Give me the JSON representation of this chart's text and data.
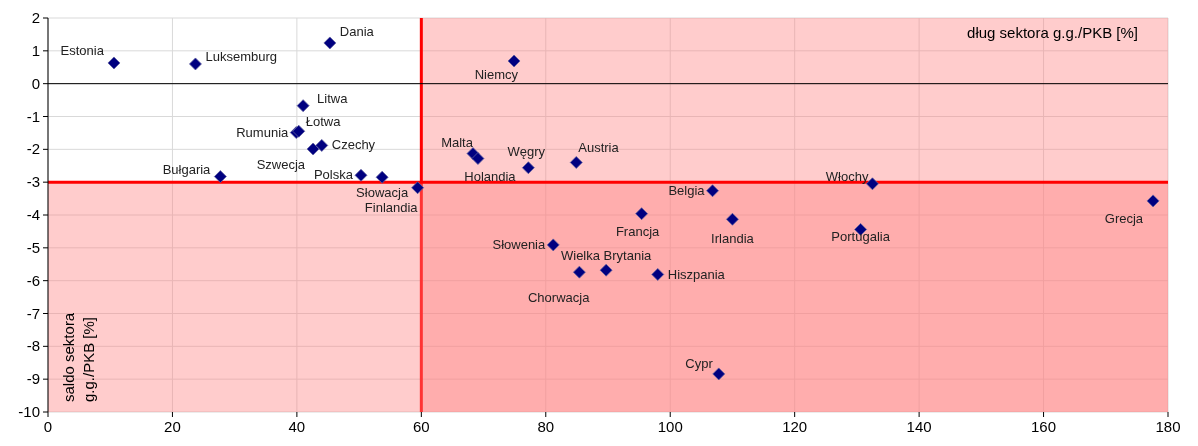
{
  "chart_data": {
    "type": "scatter",
    "xlabel": "dług sektora g.g./PKB [%]",
    "ylabel": "saldo sektora g.g./PKB [%]",
    "xlim": [
      0,
      180
    ],
    "xticks": [
      0,
      20,
      40,
      60,
      80,
      100,
      120,
      140,
      160,
      180
    ],
    "ylim": [
      -10,
      2
    ],
    "yticks": [
      -10,
      -9,
      -8,
      -7,
      -6,
      -5,
      -4,
      -3,
      -2,
      -1,
      0,
      1,
      2
    ],
    "grid": true,
    "marker": "diamond",
    "bands": [
      {
        "axis": "x",
        "from": 60,
        "to": 180,
        "color": "#ff8080"
      },
      {
        "axis": "y",
        "from": -10,
        "to": -3,
        "color": "#ff8080"
      }
    ],
    "ref_lines": [
      {
        "axis": "y",
        "value": 0,
        "color": "#000000"
      }
    ],
    "series": [
      {
        "name": "Estonia",
        "color": "#000080",
        "x": [
          10.6
        ],
        "values": [
          0.63
        ]
      },
      {
        "name": "Luksemburg",
        "color": "#000080",
        "x": [
          23.7
        ],
        "values": [
          0.6
        ]
      },
      {
        "name": "Dania",
        "color": "#000080",
        "x": [
          45.3
        ],
        "values": [
          1.24
        ]
      },
      {
        "name": "Niemcy",
        "color": "#000080",
        "x": [
          74.9
        ],
        "values": [
          0.69
        ]
      },
      {
        "name": "Litwa",
        "color": "#000080",
        "x": [
          41.0
        ],
        "values": [
          -0.67
        ]
      },
      {
        "name": "Rumunia",
        "color": "#000080",
        "x": [
          39.9
        ],
        "values": [
          -1.49
        ]
      },
      {
        "name": "Łotwa",
        "color": "#000080",
        "x": [
          40.3
        ],
        "values": [
          -1.45
        ]
      },
      {
        "name": "Szwecja",
        "color": "#000080",
        "x": [
          42.6
        ],
        "values": [
          -1.99
        ]
      },
      {
        "name": "Czechy",
        "color": "#000080",
        "x": [
          44.0
        ],
        "values": [
          -1.88
        ]
      },
      {
        "name": "Polska",
        "color": "#000080",
        "x": [
          50.3
        ],
        "values": [
          -2.79
        ]
      },
      {
        "name": "Słowacja",
        "color": "#000080",
        "x": [
          53.7
        ],
        "values": [
          -2.85
        ]
      },
      {
        "name": "Bułgaria",
        "color": "#000080",
        "x": [
          27.7
        ],
        "values": [
          -2.83
        ]
      },
      {
        "name": "Finlandia",
        "color": "#000080",
        "x": [
          59.4
        ],
        "values": [
          -3.17
        ]
      },
      {
        "name": "Malta",
        "color": "#000080",
        "x": [
          68.3
        ],
        "values": [
          -2.13
        ]
      },
      {
        "name": "Holandia",
        "color": "#000080",
        "x": [
          69.1
        ],
        "values": [
          -2.28
        ]
      },
      {
        "name": "Węgry",
        "color": "#000080",
        "x": [
          77.2
        ],
        "values": [
          -2.56
        ]
      },
      {
        "name": "Austria",
        "color": "#000080",
        "x": [
          84.9
        ],
        "values": [
          -2.4
        ]
      },
      {
        "name": "Belgia",
        "color": "#000080",
        "x": [
          106.8
        ],
        "values": [
          -3.26
        ]
      },
      {
        "name": "Francja",
        "color": "#000080",
        "x": [
          95.4
        ],
        "values": [
          -3.96
        ]
      },
      {
        "name": "Irlandia",
        "color": "#000080",
        "x": [
          110.0
        ],
        "values": [
          -4.13
        ]
      },
      {
        "name": "Włochy",
        "color": "#000080",
        "x": [
          132.5
        ],
        "values": [
          -3.05
        ]
      },
      {
        "name": "Portugalia",
        "color": "#000080",
        "x": [
          130.6
        ],
        "values": [
          -4.44
        ]
      },
      {
        "name": "Grecja",
        "color": "#000080",
        "x": [
          177.6
        ],
        "values": [
          -3.57
        ]
      },
      {
        "name": "Słowenia",
        "color": "#000080",
        "x": [
          81.2
        ],
        "values": [
          -4.91
        ]
      },
      {
        "name": "Chorwacja",
        "color": "#000080",
        "x": [
          85.4
        ],
        "values": [
          -5.74
        ]
      },
      {
        "name": "Wielka Brytania",
        "color": "#000080",
        "x": [
          89.7
        ],
        "values": [
          -5.68
        ]
      },
      {
        "name": "Hiszpania",
        "color": "#000080",
        "x": [
          98.0
        ],
        "values": [
          -5.81
        ]
      },
      {
        "name": "Cypr",
        "color": "#000080",
        "x": [
          107.8
        ],
        "values": [
          -8.84
        ]
      }
    ]
  }
}
